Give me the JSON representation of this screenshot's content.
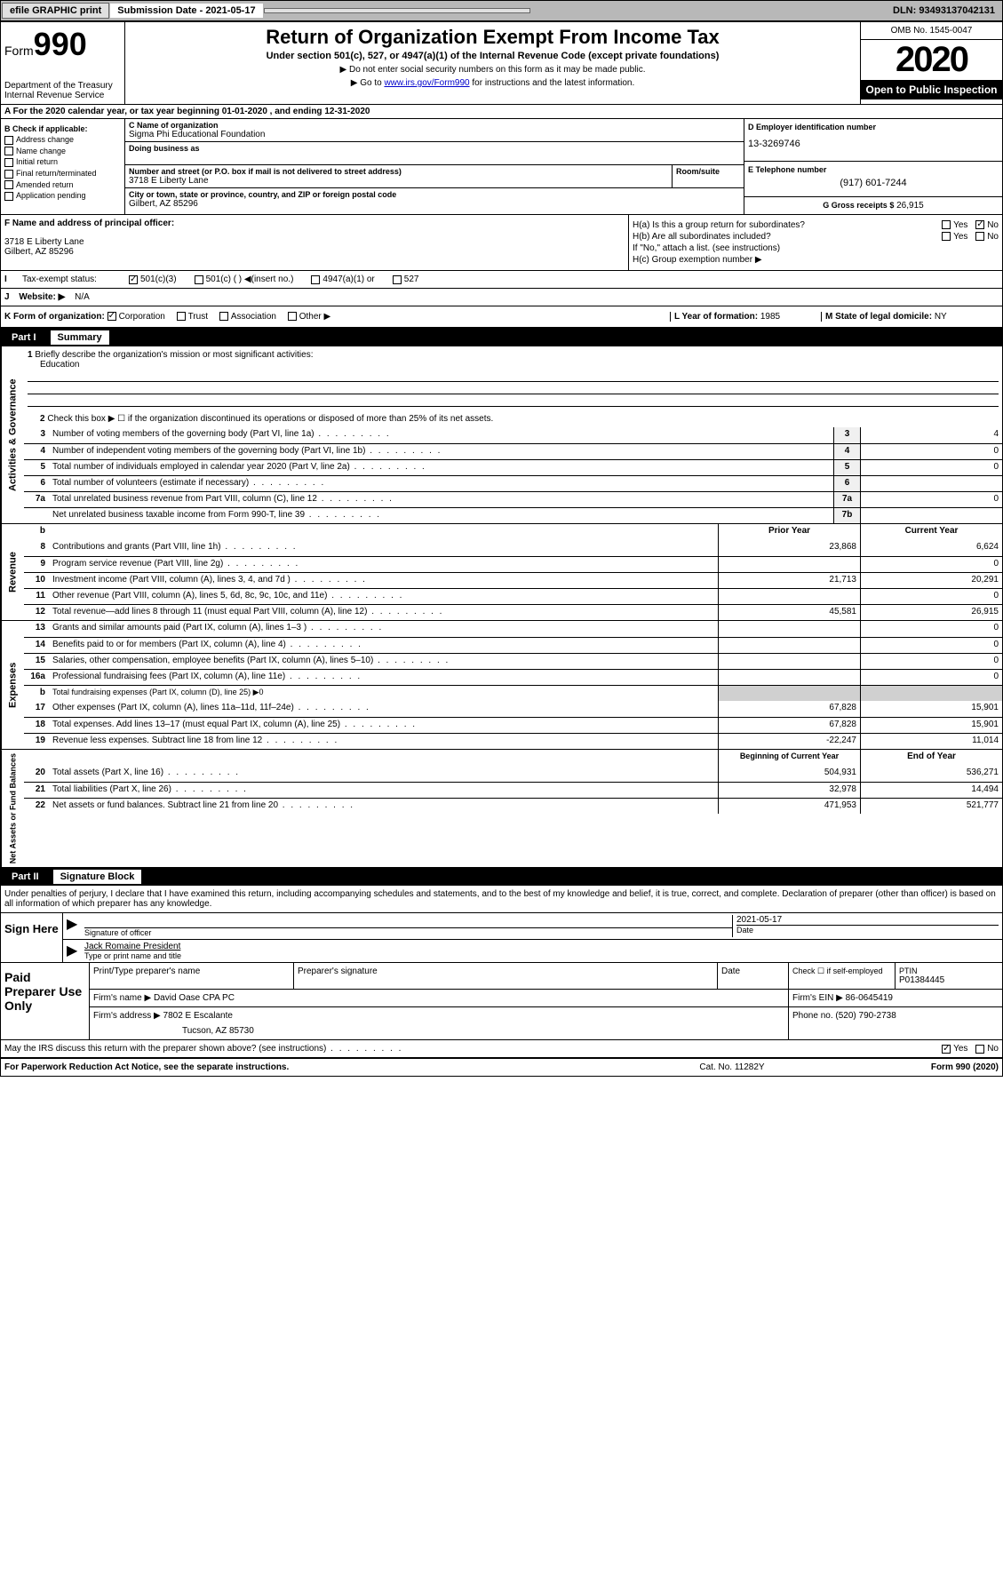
{
  "topbar": {
    "efile": "efile GRAPHIC print",
    "submission": "Submission Date - 2021-05-17",
    "dln": "DLN: 93493137042131"
  },
  "header": {
    "form_label": "Form",
    "form_num": "990",
    "dept": "Department of the Treasury Internal Revenue Service",
    "title": "Return of Organization Exempt From Income Tax",
    "subtitle": "Under section 501(c), 527, or 4947(a)(1) of the Internal Revenue Code (except private foundations)",
    "note1": "▶ Do not enter social security numbers on this form as it may be made public.",
    "note2_pre": "▶ Go to ",
    "note2_link": "www.irs.gov/Form990",
    "note2_post": " for instructions and the latest information.",
    "omb": "OMB No. 1545-0047",
    "year": "2020",
    "open": "Open to Public Inspection"
  },
  "line_a": "A For the 2020 calendar year, or tax year beginning 01-01-2020    , and ending 12-31-2020",
  "box_b": {
    "label": "B Check if applicable:",
    "items": [
      "Address change",
      "Name change",
      "Initial return",
      "Final return/terminated",
      "Amended return",
      "Application pending"
    ]
  },
  "box_c": {
    "name_label": "C Name of organization",
    "name": "Sigma Phi Educational Foundation",
    "dba_label": "Doing business as",
    "street_label": "Number and street (or P.O. box if mail is not delivered to street address)",
    "street": "3718 E Liberty Lane",
    "room_label": "Room/suite",
    "city_label": "City or town, state or province, country, and ZIP or foreign postal code",
    "city": "Gilbert, AZ  85296"
  },
  "box_d": {
    "label": "D Employer identification number",
    "value": "13-3269746"
  },
  "box_e": {
    "label": "E Telephone number",
    "value": "(917) 601-7244"
  },
  "box_g": {
    "label": "G Gross receipts $",
    "value": "26,915"
  },
  "box_f": {
    "label": "F  Name and address of principal officer:",
    "line1": "3718 E Liberty Lane",
    "line2": "Gilbert, AZ  85296"
  },
  "box_h": {
    "ha": "H(a)  Is this a group return for subordinates?",
    "hb": "H(b)  Are all subordinates included?",
    "hb_note": "If \"No,\" attach a list. (see instructions)",
    "hc": "H(c)  Group exemption number ▶"
  },
  "row_i": {
    "label": "Tax-exempt status:",
    "opts": [
      "501(c)(3)",
      "501(c) (  ) ◀(insert no.)",
      "4947(a)(1) or",
      "527"
    ]
  },
  "row_j": {
    "label": "J",
    "text": "Website: ▶",
    "value": "N/A"
  },
  "row_k": {
    "k": "K Form of organization:",
    "opts": [
      "Corporation",
      "Trust",
      "Association",
      "Other ▶"
    ],
    "l_label": "L Year of formation:",
    "l_val": "1985",
    "m_label": "M State of legal domicile:",
    "m_val": "NY"
  },
  "part1": {
    "label": "Part I",
    "title": "Summary"
  },
  "summary": {
    "line1_label": "Briefly describe the organization's mission or most significant activities:",
    "line1_val": "Education",
    "line2": "Check this box ▶ ☐  if the organization discontinued its operations or disposed of more than 25% of its net assets.",
    "rows_gov": [
      {
        "n": "3",
        "d": "Number of voting members of the governing body (Part VI, line 1a)",
        "b": "3",
        "v": "4"
      },
      {
        "n": "4",
        "d": "Number of independent voting members of the governing body (Part VI, line 1b)",
        "b": "4",
        "v": "0"
      },
      {
        "n": "5",
        "d": "Total number of individuals employed in calendar year 2020 (Part V, line 2a)",
        "b": "5",
        "v": "0"
      },
      {
        "n": "6",
        "d": "Total number of volunteers (estimate if necessary)",
        "b": "6",
        "v": ""
      },
      {
        "n": "7a",
        "d": "Total unrelated business revenue from Part VIII, column (C), line 12",
        "b": "7a",
        "v": "0"
      },
      {
        "n": "",
        "d": "Net unrelated business taxable income from Form 990-T, line 39",
        "b": "7b",
        "v": ""
      }
    ],
    "header_b": "b",
    "prior": "Prior Year",
    "current": "Current Year",
    "rows_rev": [
      {
        "n": "8",
        "d": "Contributions and grants (Part VIII, line 1h)",
        "p": "23,868",
        "c": "6,624"
      },
      {
        "n": "9",
        "d": "Program service revenue (Part VIII, line 2g)",
        "p": "",
        "c": "0"
      },
      {
        "n": "10",
        "d": "Investment income (Part VIII, column (A), lines 3, 4, and 7d )",
        "p": "21,713",
        "c": "20,291"
      },
      {
        "n": "11",
        "d": "Other revenue (Part VIII, column (A), lines 5, 6d, 8c, 9c, 10c, and 11e)",
        "p": "",
        "c": "0"
      },
      {
        "n": "12",
        "d": "Total revenue—add lines 8 through 11 (must equal Part VIII, column (A), line 12)",
        "p": "45,581",
        "c": "26,915"
      }
    ],
    "rows_exp": [
      {
        "n": "13",
        "d": "Grants and similar amounts paid (Part IX, column (A), lines 1–3 )",
        "p": "",
        "c": "0"
      },
      {
        "n": "14",
        "d": "Benefits paid to or for members (Part IX, column (A), line 4)",
        "p": "",
        "c": "0"
      },
      {
        "n": "15",
        "d": "Salaries, other compensation, employee benefits (Part IX, column (A), lines 5–10)",
        "p": "",
        "c": "0"
      },
      {
        "n": "16a",
        "d": "Professional fundraising fees (Part IX, column (A), line 11e)",
        "p": "",
        "c": "0"
      }
    ],
    "row_16b": {
      "n": "b",
      "d": "Total fundraising expenses (Part IX, column (D), line 25) ▶0"
    },
    "rows_exp2": [
      {
        "n": "17",
        "d": "Other expenses (Part IX, column (A), lines 11a–11d, 11f–24e)",
        "p": "67,828",
        "c": "15,901"
      },
      {
        "n": "18",
        "d": "Total expenses. Add lines 13–17 (must equal Part IX, column (A), line 25)",
        "p": "67,828",
        "c": "15,901"
      },
      {
        "n": "19",
        "d": "Revenue less expenses. Subtract line 18 from line 12",
        "p": "-22,247",
        "c": "11,014"
      }
    ],
    "begin": "Beginning of Current Year",
    "end": "End of Year",
    "rows_net": [
      {
        "n": "20",
        "d": "Total assets (Part X, line 16)",
        "p": "504,931",
        "c": "536,271"
      },
      {
        "n": "21",
        "d": "Total liabilities (Part X, line 26)",
        "p": "32,978",
        "c": "14,494"
      },
      {
        "n": "22",
        "d": "Net assets or fund balances. Subtract line 21 from line 20",
        "p": "471,953",
        "c": "521,777"
      }
    ]
  },
  "sides": {
    "gov": "Activities & Governance",
    "rev": "Revenue",
    "exp": "Expenses",
    "net": "Net Assets or Fund Balances"
  },
  "part2": {
    "label": "Part II",
    "title": "Signature Block"
  },
  "sig": {
    "perjury": "Under penalties of perjury, I declare that I have examined this return, including accompanying schedules and statements, and to the best of my knowledge and belief, it is true, correct, and complete. Declaration of preparer (other than officer) is based on all information of which preparer has any knowledge.",
    "sign_here": "Sign Here",
    "sig_officer": "Signature of officer",
    "date": "2021-05-17",
    "date_label": "Date",
    "name": "Jack Romaine  President",
    "name_label": "Type or print name and title"
  },
  "paid": {
    "label": "Paid Preparer Use Only",
    "h1": "Print/Type preparer's name",
    "h2": "Preparer's signature",
    "h3": "Date",
    "h4_check": "Check ☐ if self-employed",
    "h5": "PTIN",
    "ptin": "P01384445",
    "firm_name_l": "Firm's name    ▶",
    "firm_name": "David Oase CPA PC",
    "firm_ein_l": "Firm's EIN ▶",
    "firm_ein": "86-0645419",
    "firm_addr_l": "Firm's address ▶",
    "firm_addr1": "7802 E Escalante",
    "firm_addr2": "Tucson, AZ  85730",
    "phone_l": "Phone no.",
    "phone": "(520) 790-2738"
  },
  "footer": {
    "discuss": "May the IRS discuss this return with the preparer shown above? (see instructions)",
    "paperwork": "For Paperwork Reduction Act Notice, see the separate instructions.",
    "cat": "Cat. No. 11282Y",
    "formno": "Form 990 (2020)"
  }
}
